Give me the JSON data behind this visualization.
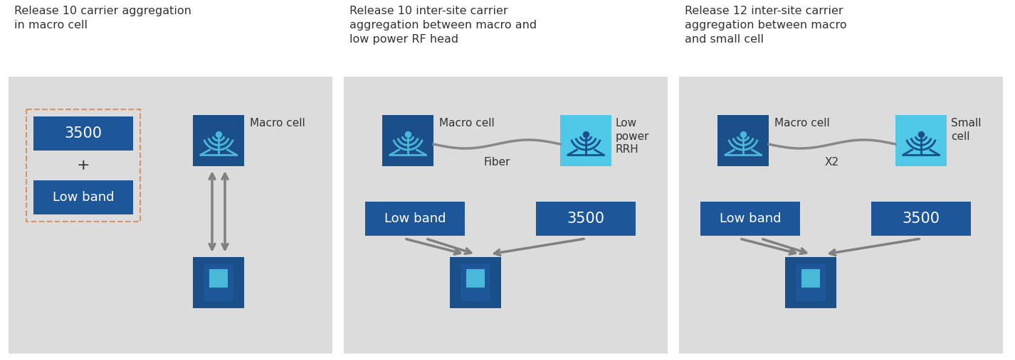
{
  "bg_color": "#dcdcdc",
  "white_bg": "#ffffff",
  "dark_blue": "#1a4f8a",
  "mid_blue": "#1e5799",
  "light_blue": "#4ab8d8",
  "cyan_box": "#50c8e8",
  "arrow_color": "#808080",
  "text_dark": "#333333",
  "panel1_title": "Release 10 carrier aggregation\nin macro cell",
  "panel2_title": "Release 10 inter-site carrier\naggregation between macro and\nlow power RF head",
  "panel3_title": "Release 12 inter-site carrier\naggregation between macro\nand small cell",
  "figsize": [
    14.26,
    5.07
  ],
  "dpi": 100
}
